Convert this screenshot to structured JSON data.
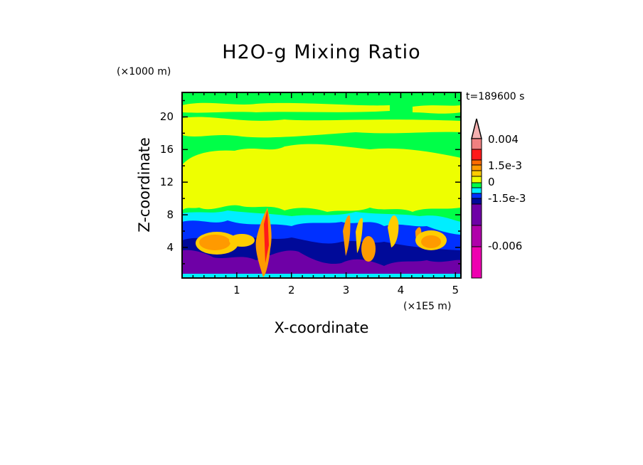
{
  "chart_data": {
    "type": "heatmap",
    "subtype": "filled-contour",
    "title": "H2O-g Mixing Ratio",
    "time_label": "t=189600 s",
    "xlabel": "X-coordinate",
    "xunit": "(×1E5 m)",
    "ylabel": "Z-coordinate",
    "yunit": "(×1000 m)",
    "xlim": [
      0,
      5.1
    ],
    "ylim": [
      0.25,
      23
    ],
    "xticks": [
      "1",
      "2",
      "3",
      "4",
      "5"
    ],
    "xtick_values": [
      1,
      2,
      3,
      4,
      5
    ],
    "yticks": [
      "4",
      "8",
      "12",
      "16",
      "20"
    ],
    "ytick_values": [
      4,
      8,
      12,
      16,
      20
    ],
    "colorbar": {
      "labels": [
        "0.004",
        "1.5e-3",
        "0",
        "-1.5e-3",
        "-0.006"
      ],
      "extend": "max",
      "colors": [
        "#f5b0b0",
        "#f08080",
        "#ff1a1a",
        "#ff6a00",
        "#ff9a00",
        "#ffcc00",
        "#eeff00",
        "#00ff48",
        "#00eeff",
        "#0030ff",
        "#000a99",
        "#6e00a6",
        "#b000aa",
        "#ee00b0"
      ]
    },
    "grid": false
  }
}
